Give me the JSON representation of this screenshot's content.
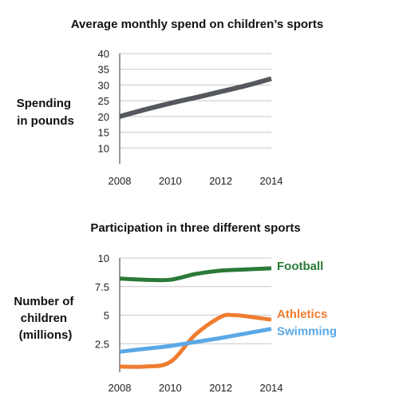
{
  "chart_data": [
    {
      "type": "line",
      "title": "Average monthly spend on children’s sports",
      "ylabel": [
        "Spending",
        "in pounds"
      ],
      "xlabel": "",
      "x_ticks": [
        "2008",
        "2010",
        "2012",
        "2014"
      ],
      "y_ticks": [
        "10",
        "15",
        "20",
        "25",
        "30",
        "35",
        "40"
      ],
      "xlim": [
        2008,
        2014
      ],
      "ylim": [
        5,
        40
      ],
      "grid": true,
      "legend": "none",
      "series": [
        {
          "color": "#55585c",
          "points": [
            [
              2008,
              20
            ],
            [
              2009,
              22.2
            ],
            [
              2010,
              24.2
            ],
            [
              2011,
              26
            ],
            [
              2012,
              27.9
            ],
            [
              2013,
              29.8
            ],
            [
              2014,
              32
            ]
          ]
        }
      ]
    },
    {
      "type": "line",
      "title": "Participation in three different sports",
      "ylabel": [
        "Number of",
        "children",
        "(millions)"
      ],
      "xlabel": "",
      "x_ticks": [
        "2008",
        "2010",
        "2012",
        "2014"
      ],
      "y_ticks": [
        "2.5",
        "5",
        "7.5",
        "10"
      ],
      "xlim": [
        2008,
        2014
      ],
      "ylim": [
        0,
        10
      ],
      "grid": true,
      "legend": "end-of-line labels",
      "series": [
        {
          "name": "Football",
          "color": "#2a7a37",
          "points": [
            [
              2008,
              8.2
            ],
            [
              2009,
              8.1
            ],
            [
              2010,
              8.1
            ],
            [
              2011,
              8.6
            ],
            [
              2012,
              8.9
            ],
            [
              2013,
              9.0
            ],
            [
              2014,
              9.1
            ]
          ]
        },
        {
          "name": "Athletics",
          "color": "#ef7d31",
          "points": [
            [
              2008,
              0.5
            ],
            [
              2009,
              0.5
            ],
            [
              2010,
              0.9
            ],
            [
              2011,
              3.3
            ],
            [
              2012,
              4.85
            ],
            [
              2012.5,
              5.0
            ],
            [
              2013,
              4.9
            ],
            [
              2014,
              4.6
            ]
          ]
        },
        {
          "name": "Swimming",
          "color": "#5aa8e6",
          "points": [
            [
              2008,
              1.8
            ],
            [
              2009,
              2.05
            ],
            [
              2010,
              2.3
            ],
            [
              2011,
              2.65
            ],
            [
              2012,
              3.0
            ],
            [
              2013,
              3.4
            ],
            [
              2014,
              3.8
            ]
          ]
        }
      ]
    }
  ]
}
